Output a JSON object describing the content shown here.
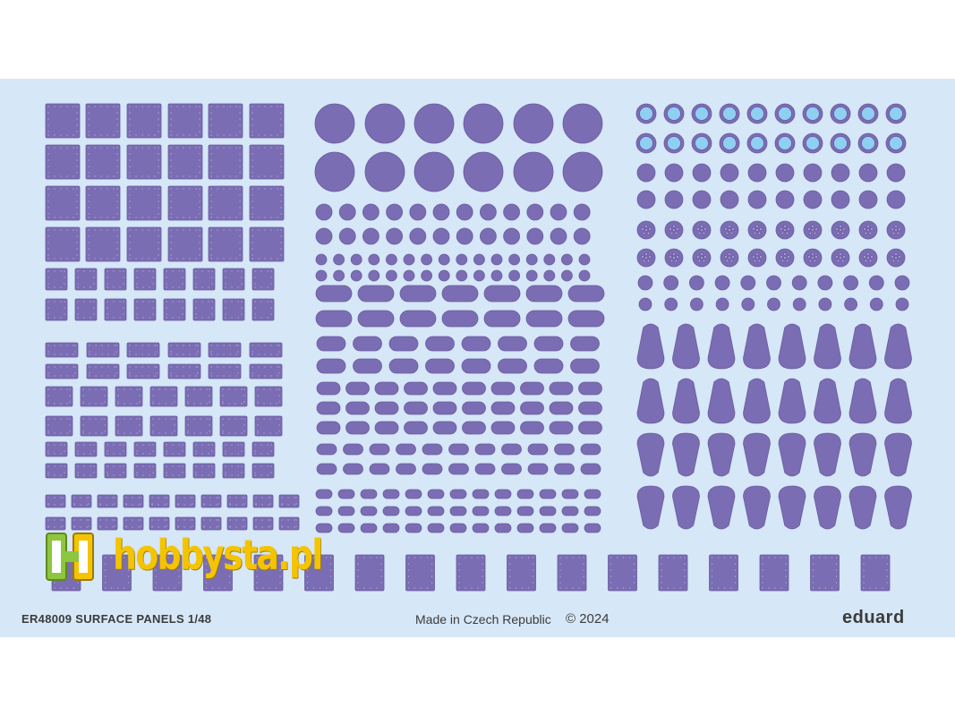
{
  "footer": {
    "product_code_title": "ER48009 SURFACE PANELS 1/48",
    "made_in": "Made in Czech Republic",
    "copyright": "© 2024",
    "brand": "eduard"
  },
  "watermark": {
    "text": "hobbysta.pl"
  },
  "colors": {
    "panel": "#7b6db3",
    "panel_edge": "#6a5ca0",
    "rivet": "#b6aede",
    "lens": "#8fd0f2",
    "sheet_background": "#d6e7f7",
    "watermark_yellow": "#f5c400",
    "watermark_green": "#8dc63f"
  }
}
